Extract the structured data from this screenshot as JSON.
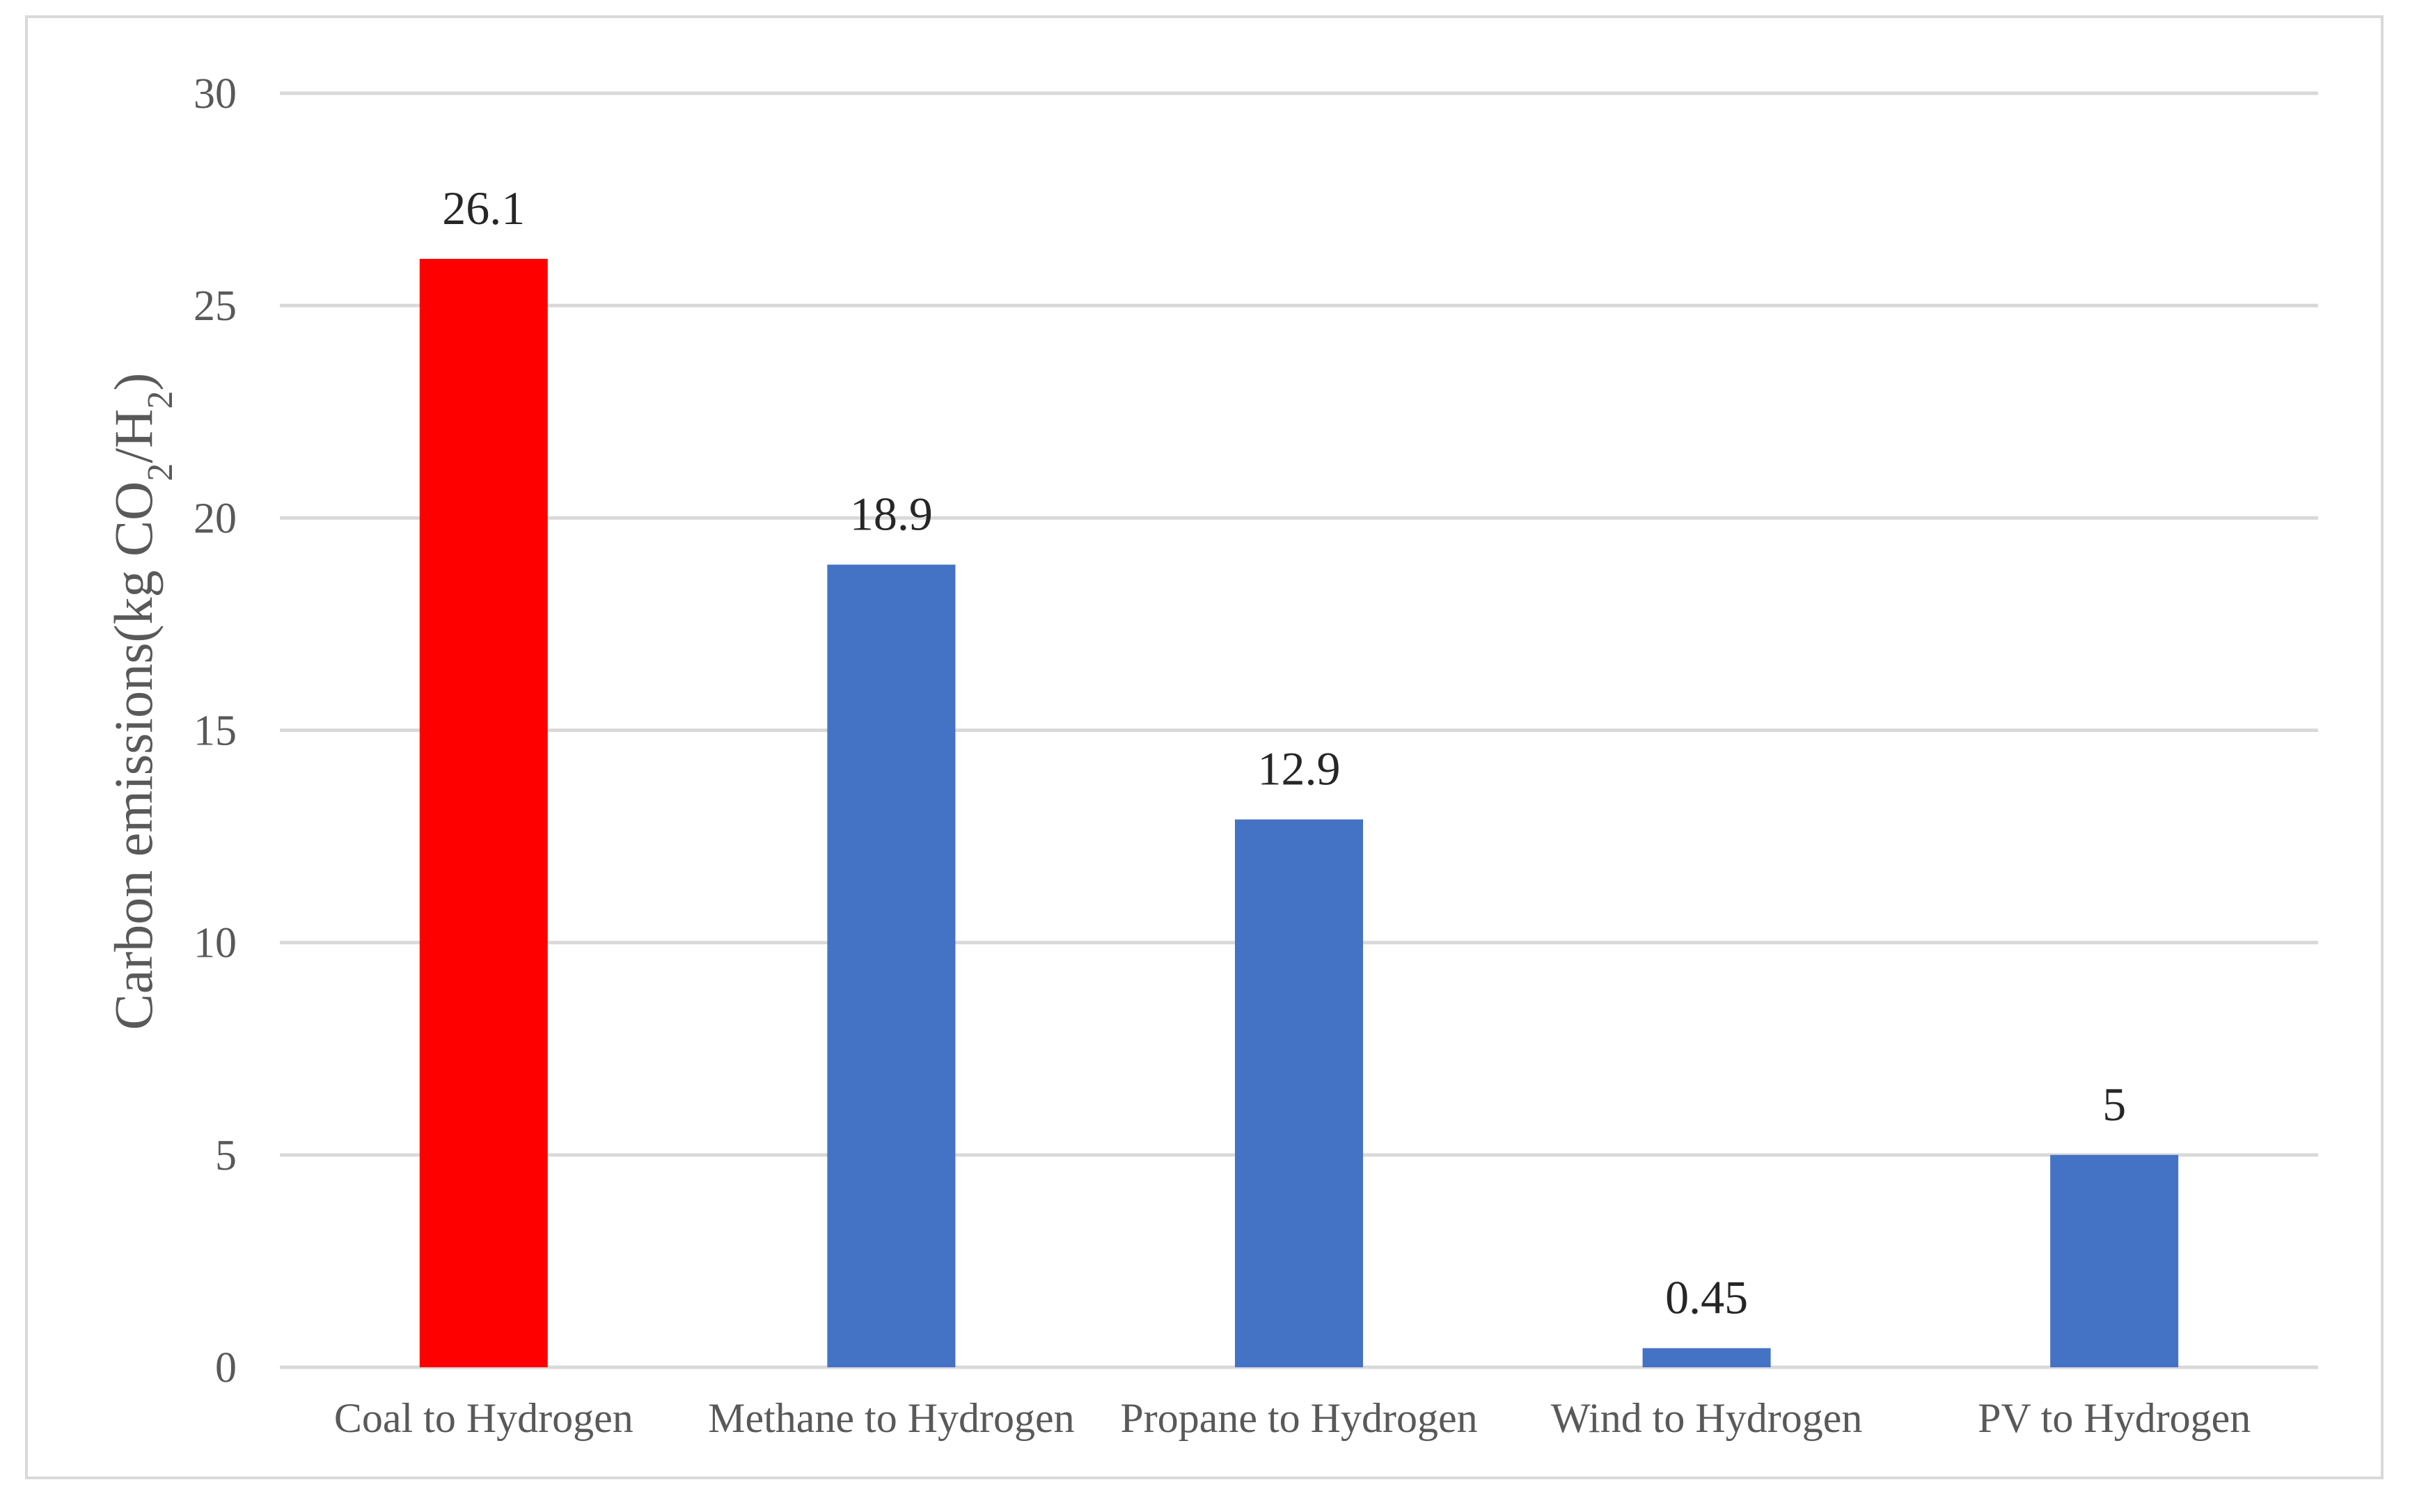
{
  "chart_data": {
    "type": "bar",
    "categories": [
      "Coal to Hydrogen",
      "Methane to Hydrogen",
      "Propane to Hydrogen",
      "Wind to Hydrogen",
      "PV to Hydrogen"
    ],
    "values": [
      26.1,
      18.9,
      12.9,
      0.45,
      5
    ],
    "data_labels": [
      "26.1",
      "18.9",
      "12.9",
      "0.45",
      "5"
    ],
    "bar_colors": [
      "#ff0000",
      "#4472c4",
      "#4472c4",
      "#4472c4",
      "#4472c4"
    ],
    "ylabel": {
      "main": "Carbon emissions(kg CO",
      "sub1": "2",
      "mid": "/H",
      "sub2": "2",
      "end": ")"
    },
    "ylim": [
      0,
      30
    ],
    "yticks": [
      0,
      5,
      10,
      15,
      20,
      25,
      30
    ],
    "ytick_labels": [
      "0",
      "5",
      "10",
      "15",
      "20",
      "25",
      "30"
    ],
    "grid": true,
    "legend": "none",
    "colors": {
      "gridline": "#d9d9d9",
      "text": "#595959",
      "border": "#d9d9d9"
    }
  }
}
